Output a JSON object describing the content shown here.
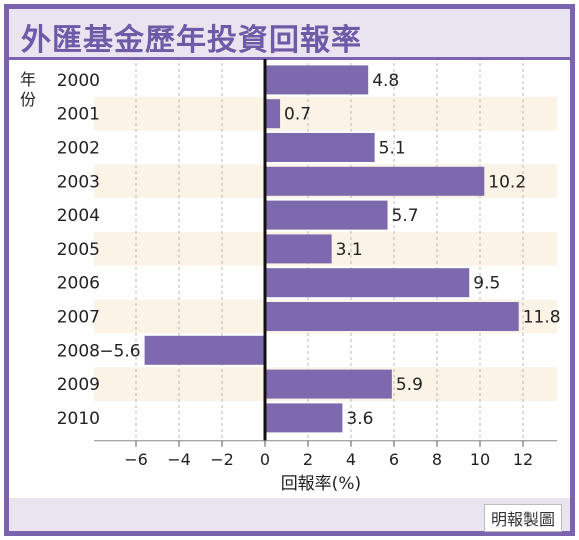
{
  "header": {
    "title": "外匯基金歷年投資回報率"
  },
  "footer": {
    "credit": "明報製圖"
  },
  "chart_data": {
    "type": "bar",
    "orientation": "horizontal",
    "title": "外匯基金歷年投資回報率",
    "ylabel": "年份",
    "xlabel": "回報率(%)",
    "categories": [
      "2000",
      "2001",
      "2002",
      "2003",
      "2004",
      "2005",
      "2006",
      "2007",
      "2008",
      "2009",
      "2010"
    ],
    "values": [
      4.8,
      0.7,
      5.1,
      10.2,
      5.7,
      3.1,
      9.5,
      11.8,
      -5.6,
      5.9,
      3.6
    ],
    "value_labels": [
      "4.8",
      "0.7",
      "5.1",
      "10.2",
      "5.7",
      "3.1",
      "9.5",
      "11.8",
      "−5.6",
      "5.9",
      "3.6"
    ],
    "xlim": [
      -8,
      14
    ],
    "xticks": [
      -6,
      -4,
      -2,
      0,
      2,
      4,
      6,
      8,
      10,
      12
    ],
    "xtick_labels": [
      "−6",
      "−4",
      "−2",
      "0",
      "2",
      "4",
      "6",
      "8",
      "10",
      "12"
    ],
    "grid": "vertical dashed",
    "colors": {
      "bar": "#7d69ad",
      "stripe": "#fbf3e6",
      "frame": "#7b64ad"
    }
  }
}
